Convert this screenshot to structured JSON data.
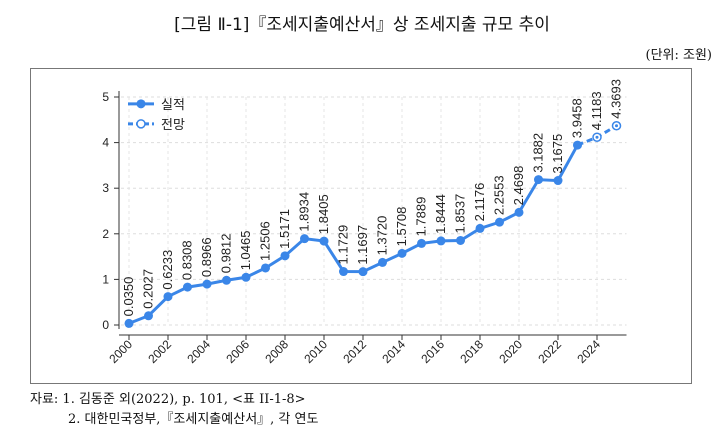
{
  "title": "[그림 Ⅱ-1]『조세지출예산서』상 조세지출 규모 추이",
  "unit": "(단위: 조원)",
  "notes": [
    "자료: 1. 김동준 외(2022), p. 101, <표 II-1-8>",
    "2. 대한민국정부,『조세지출예산서』, 각 연도"
  ],
  "colors": {
    "line": "#3a86e8"
  },
  "chart_data": {
    "type": "line",
    "title": "",
    "xlabel": "",
    "ylabel": "",
    "ylim": [
      0,
      5
    ],
    "yticks": [
      0,
      1,
      2,
      3,
      4,
      5
    ],
    "xticks": [
      2000,
      2002,
      2004,
      2006,
      2008,
      2010,
      2012,
      2014,
      2016,
      2018,
      2020,
      2022,
      2024
    ],
    "grid": true,
    "legend": "top-left",
    "series": [
      {
        "name": "실적",
        "style": "solid",
        "x": [
          2000,
          2001,
          2002,
          2003,
          2004,
          2005,
          2006,
          2007,
          2008,
          2009,
          2010,
          2011,
          2012,
          2013,
          2014,
          2015,
          2016,
          2017,
          2018,
          2019,
          2020,
          2021,
          2022,
          2023
        ],
        "labels": [
          "0.0350",
          "0.2027",
          "0.6233",
          "0.8308",
          "0.8966",
          "0.9812",
          "1.0465",
          "1.2506",
          "1.5171",
          "1.8934",
          "1.8405",
          "1.1729",
          "1.1697",
          "1.3720",
          "1.5708",
          "1.7889",
          "1.8444",
          "1.8537",
          "2.1176",
          "2.2553",
          "2.4698",
          "3.1882",
          "3.1675",
          "3.9458"
        ]
      },
      {
        "name": "전망",
        "style": "dashed",
        "x": [
          2023,
          2024,
          2025
        ],
        "labels": [
          "3.9458",
          "4.1183",
          "4.3693"
        ],
        "show_labels_from": 1
      }
    ]
  }
}
